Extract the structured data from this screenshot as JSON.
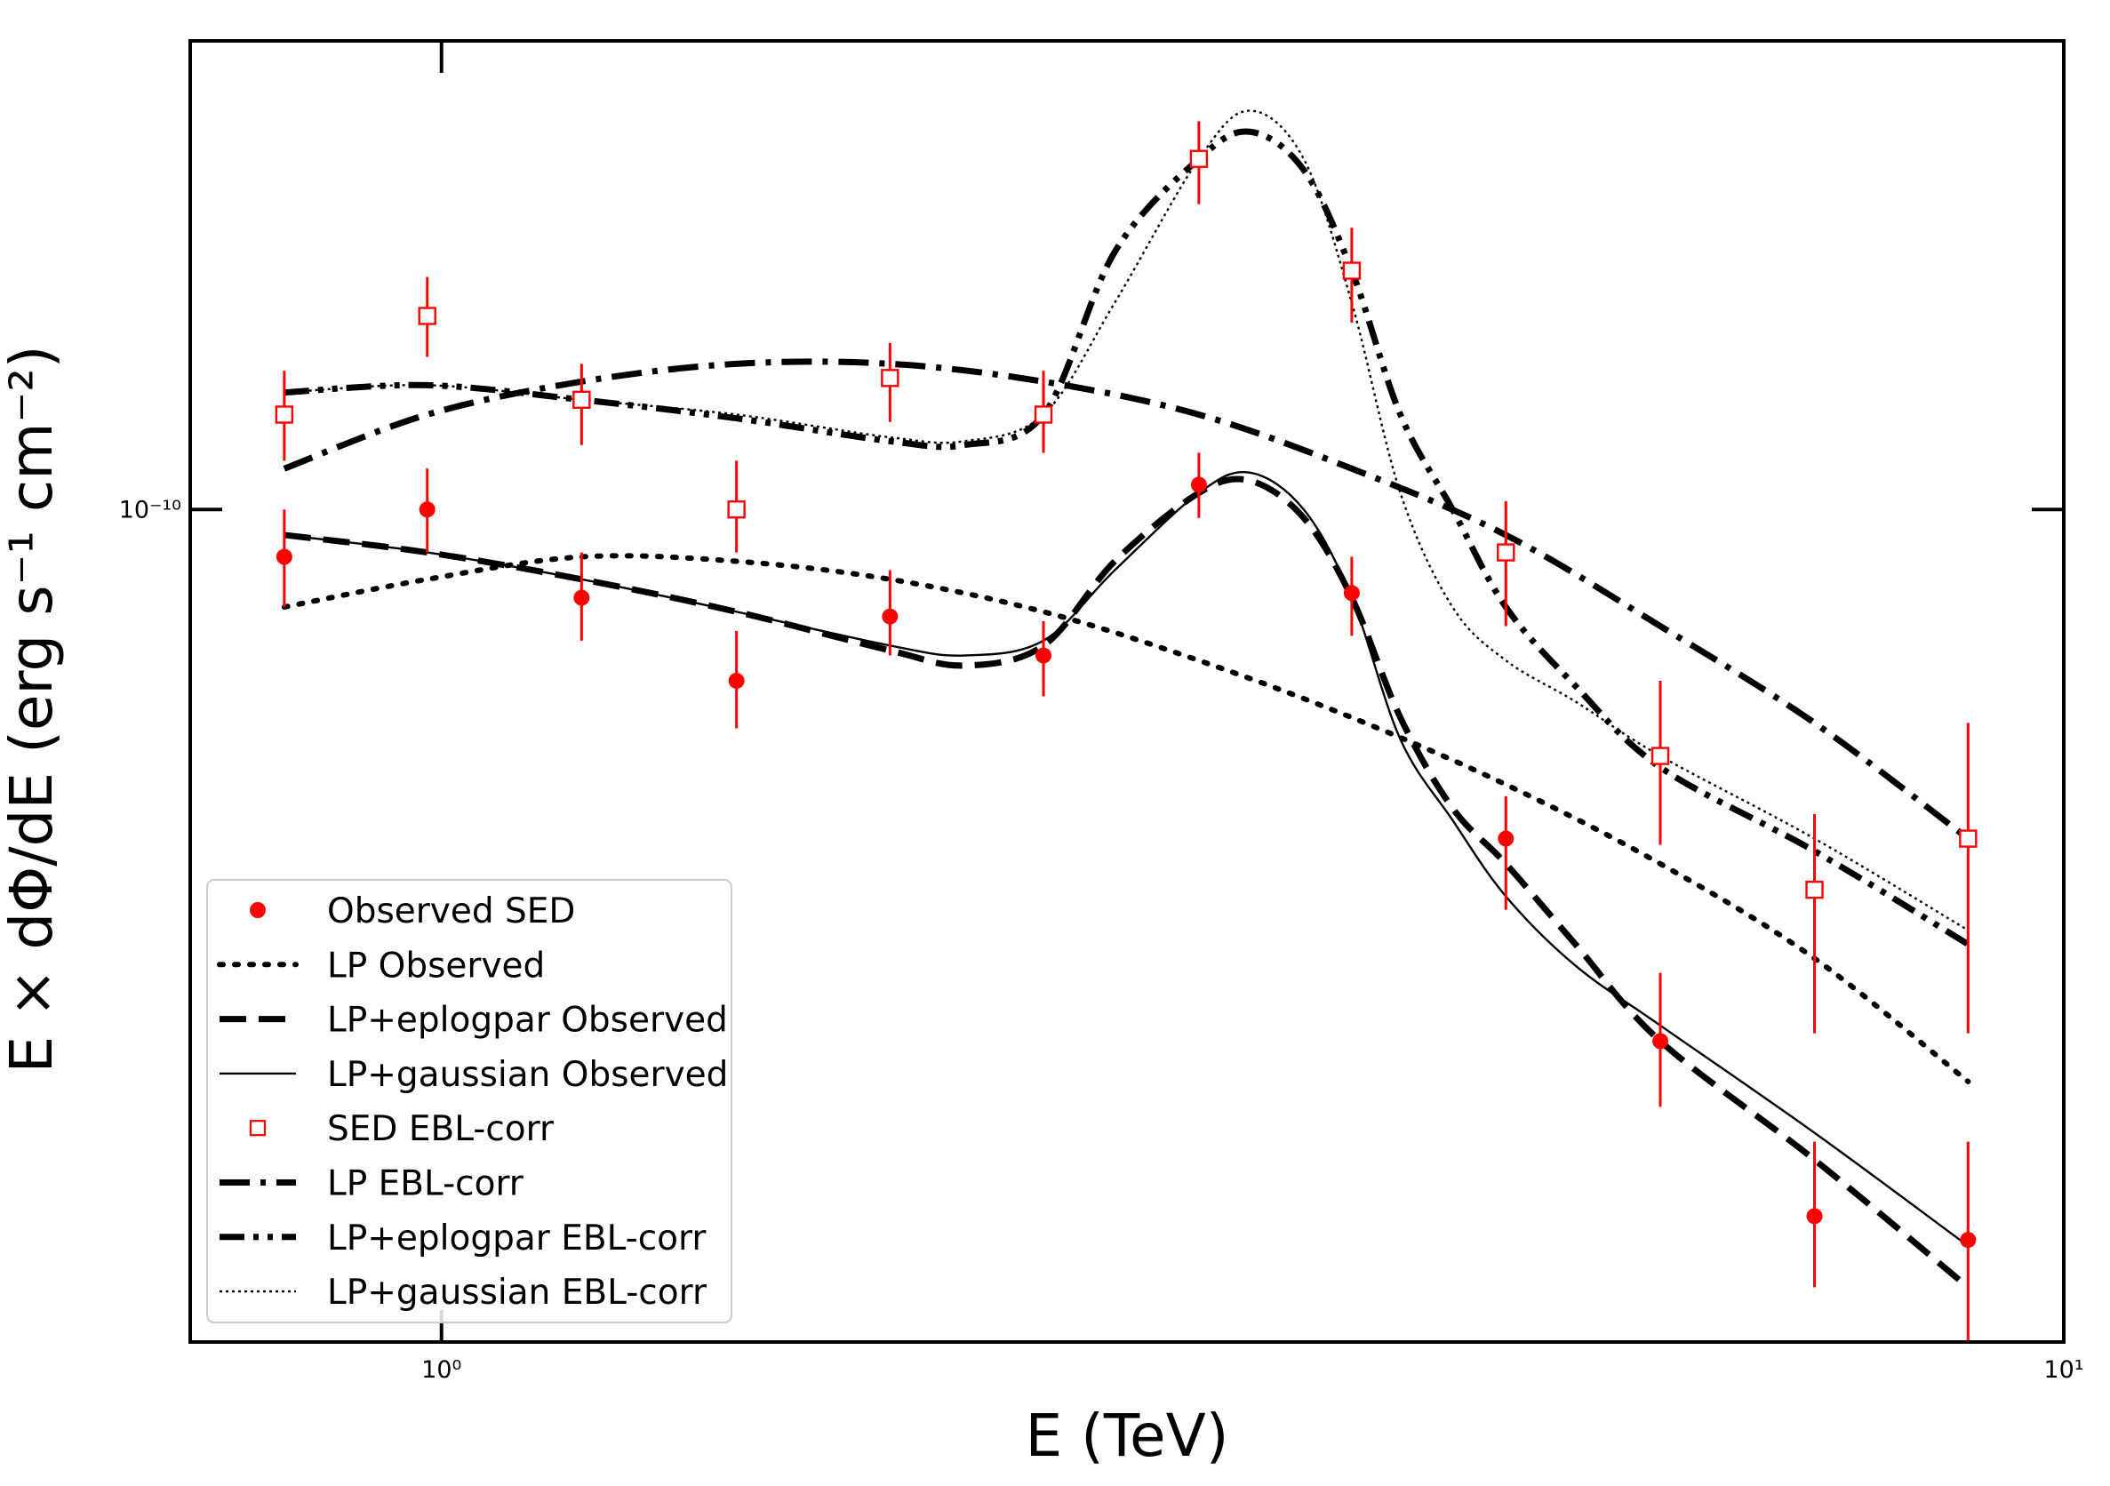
{
  "chart_data": {
    "type": "scatter",
    "xlabel": "E (TeV)",
    "ylabel": "E × dΦ/dE (erg s⁻¹ cm⁻²)",
    "xscale": "log",
    "yscale": "log",
    "xlim": [
      0.7,
      10
    ],
    "ylim": [
      3.7e-11,
      1.75e-10
    ],
    "xticks": [
      {
        "value": 1,
        "label": "10⁰"
      },
      {
        "value": 10,
        "label": "10¹"
      }
    ],
    "yticks": [
      {
        "value": 1e-10,
        "label": "10⁻¹⁰"
      }
    ],
    "grid": false,
    "legend_position": "lower-left",
    "series": [
      {
        "name": "Observed SED",
        "kind": "points",
        "marker": "filled-circle",
        "color": "#ff0000",
        "points": [
          {
            "x": 0.8,
            "y": 9.45e-11,
            "ylo": 8.9e-11,
            "yhi": 1e-10
          },
          {
            "x": 0.98,
            "y": 1e-10,
            "ylo": 9.5e-11,
            "yhi": 1.05e-10
          },
          {
            "x": 1.22,
            "y": 9e-11,
            "ylo": 8.55e-11,
            "yhi": 9.5e-11
          },
          {
            "x": 1.52,
            "y": 8.15e-11,
            "ylo": 7.7e-11,
            "yhi": 8.65e-11
          },
          {
            "x": 1.89,
            "y": 8.8e-11,
            "ylo": 8.4e-11,
            "yhi": 9.3e-11
          },
          {
            "x": 2.35,
            "y": 8.4e-11,
            "ylo": 8e-11,
            "yhi": 8.75e-11
          },
          {
            "x": 2.93,
            "y": 1.03e-10,
            "ylo": 9.9e-11,
            "yhi": 1.07e-10
          },
          {
            "x": 3.64,
            "y": 9.05e-11,
            "ylo": 8.6e-11,
            "yhi": 9.45e-11
          },
          {
            "x": 4.53,
            "y": 6.75e-11,
            "ylo": 6.2e-11,
            "yhi": 7.1e-11
          },
          {
            "x": 5.64,
            "y": 5.3e-11,
            "ylo": 4.9e-11,
            "yhi": 5.75e-11
          },
          {
            "x": 7.02,
            "y": 4.3e-11,
            "ylo": 3.95e-11,
            "yhi": 4.7e-11
          },
          {
            "x": 8.73,
            "y": 4.18e-11,
            "ylo": 3.65e-11,
            "yhi": 4.7e-11
          }
        ]
      },
      {
        "name": "LP Observed",
        "kind": "line",
        "style": "dotted-heavy",
        "color": "#000000",
        "points": [
          [
            0.8,
            8.9e-11
          ],
          [
            0.98,
            9.2e-11
          ],
          [
            1.22,
            9.45e-11
          ],
          [
            1.52,
            9.4e-11
          ],
          [
            1.89,
            9.2e-11
          ],
          [
            2.35,
            8.85e-11
          ],
          [
            2.93,
            8.35e-11
          ],
          [
            3.64,
            7.8e-11
          ],
          [
            4.53,
            7.2e-11
          ],
          [
            5.64,
            6.55e-11
          ],
          [
            7.02,
            5.85e-11
          ],
          [
            8.73,
            5.05e-11
          ]
        ]
      },
      {
        "name": "LP+eplogpar Observed",
        "kind": "line",
        "style": "dashed-heavy",
        "color": "#000000",
        "points": [
          [
            0.8,
            9.7e-11
          ],
          [
            0.98,
            9.5e-11
          ],
          [
            1.22,
            9.2e-11
          ],
          [
            1.52,
            8.85e-11
          ],
          [
            1.89,
            8.45e-11
          ],
          [
            2.1,
            8.3e-11
          ],
          [
            2.35,
            8.5e-11
          ],
          [
            2.6,
            9.4e-11
          ],
          [
            2.93,
            1.02e-10
          ],
          [
            3.15,
            1.035e-10
          ],
          [
            3.4,
            9.9e-11
          ],
          [
            3.64,
            9e-11
          ],
          [
            3.9,
            7.8e-11
          ],
          [
            4.2,
            7e-11
          ],
          [
            4.53,
            6.55e-11
          ],
          [
            5.0,
            5.95e-11
          ],
          [
            5.64,
            5.3e-11
          ],
          [
            7.02,
            4.6e-11
          ],
          [
            8.73,
            3.95e-11
          ]
        ]
      },
      {
        "name": "LP+gaussian Observed",
        "kind": "line",
        "style": "solid-thin",
        "color": "#000000",
        "points": [
          [
            0.8,
            9.7e-11
          ],
          [
            0.98,
            9.5e-11
          ],
          [
            1.22,
            9.2e-11
          ],
          [
            1.52,
            8.85e-11
          ],
          [
            1.89,
            8.5e-11
          ],
          [
            2.1,
            8.4e-11
          ],
          [
            2.35,
            8.55e-11
          ],
          [
            2.6,
            9.3e-11
          ],
          [
            2.93,
            1.02e-10
          ],
          [
            3.15,
            1.045e-10
          ],
          [
            3.4,
            1e-10
          ],
          [
            3.64,
            9e-11
          ],
          [
            3.9,
            7.6e-11
          ],
          [
            4.2,
            6.9e-11
          ],
          [
            4.53,
            6.3e-11
          ],
          [
            5.0,
            5.8e-11
          ],
          [
            5.64,
            5.4e-11
          ],
          [
            7.02,
            4.75e-11
          ],
          [
            8.73,
            4.15e-11
          ]
        ]
      },
      {
        "name": "SED EBL-corr",
        "kind": "points",
        "marker": "open-square",
        "color": "#ff0000",
        "points": [
          {
            "x": 0.8,
            "y": 1.12e-10,
            "ylo": 1.06e-10,
            "yhi": 1.18e-10
          },
          {
            "x": 0.98,
            "y": 1.26e-10,
            "ylo": 1.2e-10,
            "yhi": 1.32e-10
          },
          {
            "x": 1.22,
            "y": 1.14e-10,
            "ylo": 1.08e-10,
            "yhi": 1.19e-10
          },
          {
            "x": 1.52,
            "y": 1e-10,
            "ylo": 9.5e-11,
            "yhi": 1.06e-10
          },
          {
            "x": 1.89,
            "y": 1.17e-10,
            "ylo": 1.11e-10,
            "yhi": 1.22e-10
          },
          {
            "x": 2.35,
            "y": 1.12e-10,
            "ylo": 1.07e-10,
            "yhi": 1.18e-10
          },
          {
            "x": 2.93,
            "y": 1.52e-10,
            "ylo": 1.44e-10,
            "yhi": 1.59e-10
          },
          {
            "x": 3.64,
            "y": 1.33e-10,
            "ylo": 1.25e-10,
            "yhi": 1.4e-10
          },
          {
            "x": 4.53,
            "y": 9.5e-11,
            "ylo": 8.7e-11,
            "yhi": 1.01e-10
          },
          {
            "x": 5.64,
            "y": 7.45e-11,
            "ylo": 6.7e-11,
            "yhi": 8.15e-11
          },
          {
            "x": 7.02,
            "y": 6.35e-11,
            "ylo": 5.35e-11,
            "yhi": 6.95e-11
          },
          {
            "x": 8.73,
            "y": 6.75e-11,
            "ylo": 5.35e-11,
            "yhi": 7.75e-11
          }
        ]
      },
      {
        "name": "LP EBL-corr",
        "kind": "line",
        "style": "dashdot-heavy",
        "color": "#000000",
        "points": [
          [
            0.8,
            1.05e-10
          ],
          [
            0.98,
            1.12e-10
          ],
          [
            1.22,
            1.165e-10
          ],
          [
            1.52,
            1.19e-10
          ],
          [
            1.89,
            1.19e-10
          ],
          [
            2.35,
            1.165e-10
          ],
          [
            2.93,
            1.12e-10
          ],
          [
            3.64,
            1.05e-10
          ],
          [
            4.53,
            9.7e-11
          ],
          [
            5.64,
            8.7e-11
          ],
          [
            7.02,
            7.75e-11
          ],
          [
            8.73,
            6.75e-11
          ]
        ]
      },
      {
        "name": "LP+eplogpar EBL-corr",
        "kind": "line",
        "style": "dashdotdot-heavy",
        "color": "#000000",
        "points": [
          [
            0.8,
            1.15e-10
          ],
          [
            0.98,
            1.16e-10
          ],
          [
            1.22,
            1.14e-10
          ],
          [
            1.52,
            1.115e-10
          ],
          [
            1.89,
            1.085e-10
          ],
          [
            2.1,
            1.08e-10
          ],
          [
            2.35,
            1.12e-10
          ],
          [
            2.6,
            1.36e-10
          ],
          [
            2.93,
            1.52e-10
          ],
          [
            3.15,
            1.57e-10
          ],
          [
            3.4,
            1.5e-10
          ],
          [
            3.64,
            1.33e-10
          ],
          [
            3.9,
            1.12e-10
          ],
          [
            4.2,
            1e-10
          ],
          [
            4.53,
            8.9e-11
          ],
          [
            5.0,
            8.1e-11
          ],
          [
            5.64,
            7.35e-11
          ],
          [
            7.02,
            6.65e-11
          ],
          [
            8.73,
            5.95e-11
          ]
        ]
      },
      {
        "name": "LP+gaussian EBL-corr",
        "kind": "line",
        "style": "dotted-thin",
        "color": "#000000",
        "points": [
          [
            0.8,
            1.15e-10
          ],
          [
            0.98,
            1.16e-10
          ],
          [
            1.22,
            1.14e-10
          ],
          [
            1.52,
            1.12e-10
          ],
          [
            1.89,
            1.09e-10
          ],
          [
            2.1,
            1.085e-10
          ],
          [
            2.35,
            1.12e-10
          ],
          [
            2.6,
            1.28e-10
          ],
          [
            2.93,
            1.52e-10
          ],
          [
            3.15,
            1.61e-10
          ],
          [
            3.4,
            1.52e-10
          ],
          [
            3.64,
            1.28e-10
          ],
          [
            3.9,
            1.02e-10
          ],
          [
            4.2,
            8.9e-11
          ],
          [
            4.53,
            8.35e-11
          ],
          [
            5.0,
            7.95e-11
          ],
          [
            5.64,
            7.45e-11
          ],
          [
            7.02,
            6.75e-11
          ],
          [
            8.73,
            6.05e-11
          ]
        ]
      }
    ]
  }
}
